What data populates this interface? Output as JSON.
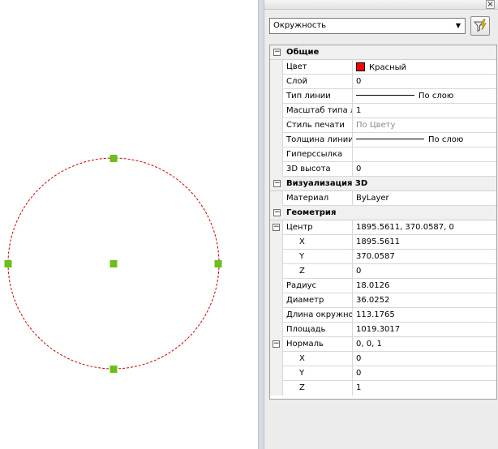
{
  "colors": {
    "circle": "#cc0000",
    "grip": "#6bbf1a",
    "color_swatch": "#ff0000"
  },
  "palette": {
    "close_glyph": "×",
    "object_type": "Окружность",
    "quick_select_icon": "quick-select-filter",
    "categories": {
      "general": "Общие",
      "visualization": "Визуализация 3D",
      "geometry": "Геометрия"
    },
    "general": {
      "color": {
        "name": "Цвет",
        "value": "Красный"
      },
      "layer": {
        "name": "Слой",
        "value": "0"
      },
      "linetype": {
        "name": "Тип линии",
        "value": "По слою"
      },
      "linetype_scale": {
        "name": "Масштаб типа л",
        "value": "1"
      },
      "plot_style": {
        "name": "Стиль печати",
        "value": "По Цвету"
      },
      "lineweight": {
        "name": "Толщина линии",
        "value": "По слою"
      },
      "hyperlink": {
        "name": "Гиперссылка",
        "value": ""
      },
      "thickness": {
        "name": "3D высота",
        "value": "0"
      }
    },
    "visualization": {
      "material": {
        "name": "Материал",
        "value": "ByLayer"
      }
    },
    "geometry": {
      "center": {
        "name": "Центр",
        "value": "1895.5611, 370.0587, 0"
      },
      "center_x": {
        "name": "X",
        "value": "1895.5611"
      },
      "center_y": {
        "name": "Y",
        "value": "370.0587"
      },
      "center_z": {
        "name": "Z",
        "value": "0"
      },
      "radius": {
        "name": "Радиус",
        "value": "18.0126"
      },
      "diameter": {
        "name": "Диаметр",
        "value": "36.0252"
      },
      "circumference": {
        "name": "Длина окружно",
        "value": "113.1765"
      },
      "area": {
        "name": "Площадь",
        "value": "1019.3017"
      },
      "normal": {
        "name": "Нормаль",
        "value": "0, 0, 1"
      },
      "normal_x": {
        "name": "X",
        "value": "0"
      },
      "normal_y": {
        "name": "Y",
        "value": "0"
      },
      "normal_z": {
        "name": "Z",
        "value": "1"
      }
    }
  }
}
